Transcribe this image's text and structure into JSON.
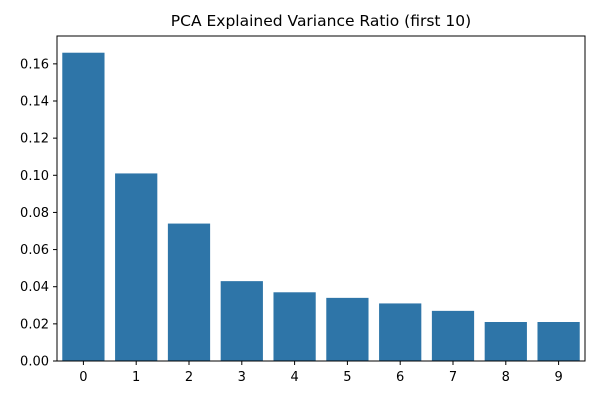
{
  "chart_data": {
    "type": "bar",
    "title": "PCA Explained Variance Ratio (first 10)",
    "xlabel": "",
    "ylabel": "",
    "categories": [
      "0",
      "1",
      "2",
      "3",
      "4",
      "5",
      "6",
      "7",
      "8",
      "9"
    ],
    "values": [
      0.166,
      0.101,
      0.074,
      0.043,
      0.037,
      0.034,
      0.031,
      0.027,
      0.021,
      0.021
    ],
    "ylim": [
      0,
      0.175
    ],
    "yticks": [
      0.0,
      0.02,
      0.04,
      0.06,
      0.08,
      0.1,
      0.12,
      0.14,
      0.16
    ],
    "ytick_labels": [
      "0.00",
      "0.02",
      "0.04",
      "0.06",
      "0.08",
      "0.10",
      "0.12",
      "0.14",
      "0.16"
    ],
    "grid": false,
    "bar_color": "#2e75a8",
    "axis_color": "#000000"
  }
}
